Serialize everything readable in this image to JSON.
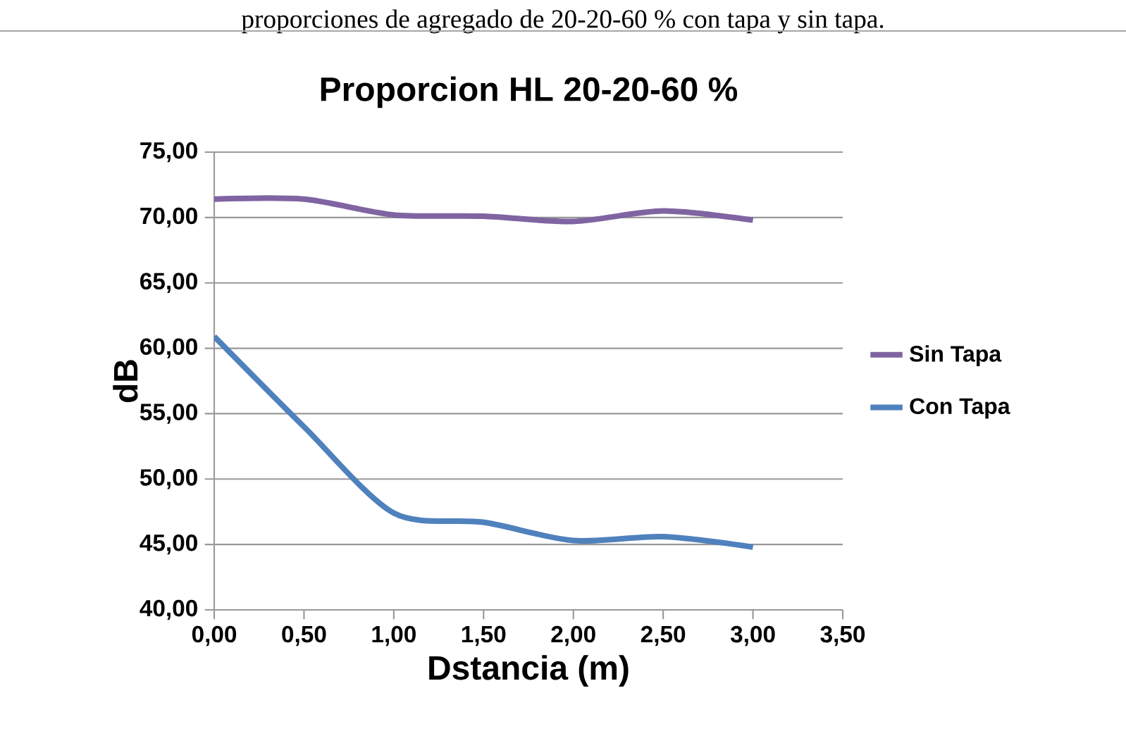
{
  "chart_data": {
    "type": "line",
    "title": "Proporcion HL 20-20-60 %",
    "xlabel": "Dstancia (m)",
    "ylabel": "dB",
    "annotations": [
      "proporciones de agregado de 20-20-60 % con tapa y sin tapa."
    ],
    "x": [
      0,
      0.5,
      1,
      1.5,
      2,
      2.5,
      3
    ],
    "series": [
      {
        "name": "Sin Tapa",
        "color": "#8064a2",
        "values": [
          71.4,
          71.4,
          70.2,
          70.1,
          69.7,
          70.5,
          69.8
        ]
      },
      {
        "name": "Con Tapa",
        "color": "#4f81bd",
        "values": [
          60.9,
          54.0,
          47.4,
          46.7,
          45.3,
          45.6,
          44.8
        ]
      }
    ],
    "xlim": [
      0,
      3.5
    ],
    "ylim": [
      40,
      75
    ],
    "xticks": [
      {
        "value": 0,
        "label": "0,00"
      },
      {
        "value": 0.5,
        "label": "0,50"
      },
      {
        "value": 1,
        "label": "1,00"
      },
      {
        "value": 1.5,
        "label": "1,50"
      },
      {
        "value": 2,
        "label": "2,00"
      },
      {
        "value": 2.5,
        "label": "2,50"
      },
      {
        "value": 3,
        "label": "3,00"
      },
      {
        "value": 3.5,
        "label": "3,50"
      }
    ],
    "yticks": [
      {
        "value": 40,
        "label": "40,00"
      },
      {
        "value": 45,
        "label": "45,00"
      },
      {
        "value": 50,
        "label": "50,00"
      },
      {
        "value": 55,
        "label": "55,00"
      },
      {
        "value": 60,
        "label": "60,00"
      },
      {
        "value": 65,
        "label": "65,00"
      },
      {
        "value": 70,
        "label": "70,00"
      },
      {
        "value": 75,
        "label": "75,00"
      }
    ],
    "grid": "y",
    "legend": "right",
    "marker": "none",
    "line_style": "solid"
  }
}
